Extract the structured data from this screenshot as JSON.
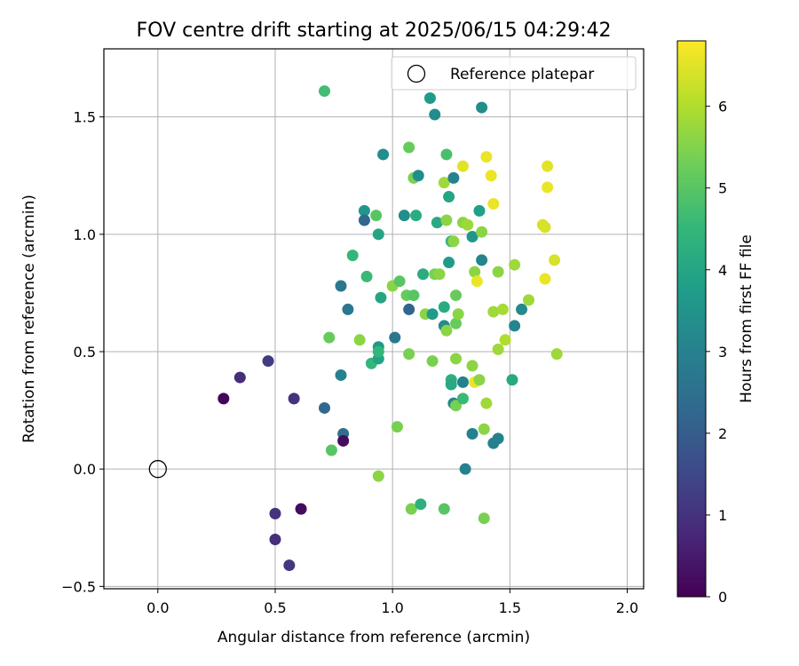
{
  "chart_data": {
    "type": "scatter",
    "title": "FOV centre drift starting at 2025/06/15 04:29:42",
    "xlabel": "Angular distance from reference (arcmin)",
    "ylabel": "Rotation from reference (arcmin)",
    "xlim": [
      -0.23,
      2.07
    ],
    "ylim": [
      -0.51,
      1.79
    ],
    "xticks": [
      "0.0",
      "0.5",
      "1.0",
      "1.5",
      "2.0"
    ],
    "xtick_values": [
      0.0,
      0.5,
      1.0,
      1.5,
      2.0
    ],
    "yticks": [
      "−0.5",
      "0.0",
      "0.5",
      "1.0",
      "1.5"
    ],
    "ytick_values": [
      -0.5,
      0.0,
      0.5,
      1.0,
      1.5
    ],
    "grid": true,
    "legend": {
      "location": "upper right",
      "entries": [
        "Reference platepar"
      ]
    },
    "reference_point": {
      "x": 0.0,
      "y": 0.0
    },
    "colorbar": {
      "label": "Hours from first FF file",
      "range": [
        0,
        6.8
      ],
      "ticks": [
        "0",
        "1",
        "2",
        "3",
        "4",
        "5",
        "6"
      ],
      "tick_values": [
        0,
        1,
        2,
        3,
        4,
        5,
        6
      ],
      "colormap": [
        "#440154",
        "#482878",
        "#3e4989",
        "#31688e",
        "#26828e",
        "#1f9e89",
        "#35b779",
        "#6ece58",
        "#b5de2b",
        "#fde725"
      ]
    },
    "points": [
      {
        "x": 0.28,
        "y": 0.3,
        "h": 0.1
      },
      {
        "x": 0.35,
        "y": 0.39,
        "h": 0.9
      },
      {
        "x": 0.47,
        "y": 0.46,
        "h": 1.2
      },
      {
        "x": 0.58,
        "y": 0.3,
        "h": 1.0
      },
      {
        "x": 0.5,
        "y": -0.19,
        "h": 1.0
      },
      {
        "x": 0.5,
        "y": -0.3,
        "h": 0.9
      },
      {
        "x": 0.56,
        "y": -0.41,
        "h": 1.1
      },
      {
        "x": 0.61,
        "y": -0.17,
        "h": 0.2
      },
      {
        "x": 0.71,
        "y": 0.26,
        "h": 2.3
      },
      {
        "x": 0.71,
        "y": 1.61,
        "h": 4.7
      },
      {
        "x": 0.73,
        "y": 0.56,
        "h": 5.2
      },
      {
        "x": 0.74,
        "y": 0.08,
        "h": 5.0
      },
      {
        "x": 0.78,
        "y": 0.78,
        "h": 2.7
      },
      {
        "x": 0.78,
        "y": 0.4,
        "h": 3.0
      },
      {
        "x": 0.79,
        "y": 0.15,
        "h": 2.5
      },
      {
        "x": 0.79,
        "y": 0.12,
        "h": 0.2
      },
      {
        "x": 0.81,
        "y": 0.68,
        "h": 2.7
      },
      {
        "x": 0.83,
        "y": 0.91,
        "h": 4.5
      },
      {
        "x": 0.86,
        "y": 0.55,
        "h": 5.6
      },
      {
        "x": 0.88,
        "y": 1.1,
        "h": 3.6
      },
      {
        "x": 0.88,
        "y": 1.06,
        "h": 2.3
      },
      {
        "x": 0.89,
        "y": 0.82,
        "h": 4.6
      },
      {
        "x": 0.91,
        "y": 0.45,
        "h": 4.5
      },
      {
        "x": 0.93,
        "y": 1.08,
        "h": 5.0
      },
      {
        "x": 0.94,
        "y": 0.47,
        "h": 3.9
      },
      {
        "x": 0.94,
        "y": 0.52,
        "h": 3.6
      },
      {
        "x": 0.94,
        "y": 0.5,
        "h": 4.5
      },
      {
        "x": 0.94,
        "y": 1.0,
        "h": 4.0
      },
      {
        "x": 0.95,
        "y": 0.73,
        "h": 4.0
      },
      {
        "x": 0.94,
        "y": -0.03,
        "h": 5.6
      },
      {
        "x": 0.96,
        "y": 1.34,
        "h": 3.3
      },
      {
        "x": 1.0,
        "y": 0.78,
        "h": 5.6
      },
      {
        "x": 1.01,
        "y": 0.56,
        "h": 2.7
      },
      {
        "x": 1.02,
        "y": 0.18,
        "h": 5.4
      },
      {
        "x": 1.03,
        "y": 0.8,
        "h": 5.0
      },
      {
        "x": 1.05,
        "y": 1.08,
        "h": 3.3
      },
      {
        "x": 1.07,
        "y": 1.37,
        "h": 5.2
      },
      {
        "x": 1.06,
        "y": 0.74,
        "h": 5.2
      },
      {
        "x": 1.07,
        "y": 0.68,
        "h": 2.2
      },
      {
        "x": 1.07,
        "y": 0.49,
        "h": 5.4
      },
      {
        "x": 1.08,
        "y": -0.17,
        "h": 5.4
      },
      {
        "x": 1.09,
        "y": 1.24,
        "h": 5.4
      },
      {
        "x": 1.09,
        "y": 0.74,
        "h": 5.0
      },
      {
        "x": 1.1,
        "y": 1.08,
        "h": 4.2
      },
      {
        "x": 1.11,
        "y": 1.25,
        "h": 3.3
      },
      {
        "x": 1.12,
        "y": -0.15,
        "h": 4.3
      },
      {
        "x": 1.13,
        "y": 0.83,
        "h": 4.2
      },
      {
        "x": 1.14,
        "y": 0.66,
        "h": 5.6
      },
      {
        "x": 1.16,
        "y": 1.58,
        "h": 3.7
      },
      {
        "x": 1.17,
        "y": 0.66,
        "h": 3.7
      },
      {
        "x": 1.17,
        "y": 0.46,
        "h": 5.4
      },
      {
        "x": 1.18,
        "y": 1.51,
        "h": 3.3
      },
      {
        "x": 1.18,
        "y": 0.83,
        "h": 5.4
      },
      {
        "x": 1.19,
        "y": 1.05,
        "h": 4.1
      },
      {
        "x": 1.2,
        "y": 0.83,
        "h": 5.6
      },
      {
        "x": 1.22,
        "y": 1.22,
        "h": 5.8
      },
      {
        "x": 1.22,
        "y": 0.69,
        "h": 4.2
      },
      {
        "x": 1.22,
        "y": 0.61,
        "h": 3.3
      },
      {
        "x": 1.23,
        "y": 0.59,
        "h": 5.6
      },
      {
        "x": 1.23,
        "y": 1.34,
        "h": 4.8
      },
      {
        "x": 1.23,
        "y": 1.06,
        "h": 5.6
      },
      {
        "x": 1.24,
        "y": 1.16,
        "h": 4.0
      },
      {
        "x": 1.24,
        "y": 0.88,
        "h": 3.7
      },
      {
        "x": 1.22,
        "y": -0.17,
        "h": 5.0
      },
      {
        "x": 1.25,
        "y": 0.97,
        "h": 4.5
      },
      {
        "x": 1.26,
        "y": 1.24,
        "h": 3.0
      },
      {
        "x": 1.26,
        "y": 0.97,
        "h": 5.6
      },
      {
        "x": 1.25,
        "y": 0.38,
        "h": 4.3
      },
      {
        "x": 1.25,
        "y": 0.36,
        "h": 4.1
      },
      {
        "x": 1.26,
        "y": 0.28,
        "h": 3.1
      },
      {
        "x": 1.27,
        "y": 0.74,
        "h": 5.2
      },
      {
        "x": 1.27,
        "y": 0.62,
        "h": 5.2
      },
      {
        "x": 1.27,
        "y": 0.47,
        "h": 5.6
      },
      {
        "x": 1.27,
        "y": 0.27,
        "h": 5.4
      },
      {
        "x": 1.28,
        "y": 0.66,
        "h": 5.6
      },
      {
        "x": 1.3,
        "y": 1.29,
        "h": 6.5
      },
      {
        "x": 1.3,
        "y": 1.05,
        "h": 5.6
      },
      {
        "x": 1.3,
        "y": 0.37,
        "h": 3.0
      },
      {
        "x": 1.3,
        "y": 0.3,
        "h": 4.6
      },
      {
        "x": 1.31,
        "y": 0.0,
        "h": 3.0
      },
      {
        "x": 1.32,
        "y": 1.04,
        "h": 5.8
      },
      {
        "x": 1.34,
        "y": 0.99,
        "h": 3.6
      },
      {
        "x": 1.34,
        "y": 0.44,
        "h": 5.6
      },
      {
        "x": 1.34,
        "y": 0.15,
        "h": 3.0
      },
      {
        "x": 1.35,
        "y": 0.84,
        "h": 5.6
      },
      {
        "x": 1.35,
        "y": 0.37,
        "h": 6.6
      },
      {
        "x": 1.36,
        "y": 0.8,
        "h": 6.6
      },
      {
        "x": 1.37,
        "y": 1.1,
        "h": 3.8
      },
      {
        "x": 1.37,
        "y": 0.38,
        "h": 5.6
      },
      {
        "x": 1.38,
        "y": 1.54,
        "h": 3.3
      },
      {
        "x": 1.38,
        "y": 1.01,
        "h": 5.6
      },
      {
        "x": 1.38,
        "y": 0.89,
        "h": 3.1
      },
      {
        "x": 1.39,
        "y": 0.17,
        "h": 5.6
      },
      {
        "x": 1.39,
        "y": -0.21,
        "h": 5.4
      },
      {
        "x": 1.4,
        "y": 1.33,
        "h": 6.6
      },
      {
        "x": 1.4,
        "y": 0.28,
        "h": 5.8
      },
      {
        "x": 1.42,
        "y": 1.25,
        "h": 6.6
      },
      {
        "x": 1.43,
        "y": 1.13,
        "h": 6.6
      },
      {
        "x": 1.43,
        "y": 0.11,
        "h": 3.0
      },
      {
        "x": 1.43,
        "y": 0.67,
        "h": 5.8
      },
      {
        "x": 1.45,
        "y": 0.84,
        "h": 5.6
      },
      {
        "x": 1.45,
        "y": 0.51,
        "h": 5.8
      },
      {
        "x": 1.45,
        "y": 0.13,
        "h": 3.0
      },
      {
        "x": 1.47,
        "y": 0.68,
        "h": 5.9
      },
      {
        "x": 1.48,
        "y": 0.55,
        "h": 6.0
      },
      {
        "x": 1.51,
        "y": 0.38,
        "h": 4.1
      },
      {
        "x": 1.52,
        "y": 0.87,
        "h": 5.8
      },
      {
        "x": 1.52,
        "y": 0.61,
        "h": 3.1
      },
      {
        "x": 1.55,
        "y": 0.68,
        "h": 3.2
      },
      {
        "x": 1.58,
        "y": 0.72,
        "h": 5.8
      },
      {
        "x": 1.64,
        "y": 1.04,
        "h": 6.4
      },
      {
        "x": 1.65,
        "y": 1.03,
        "h": 6.4
      },
      {
        "x": 1.65,
        "y": 0.81,
        "h": 6.6
      },
      {
        "x": 1.66,
        "y": 1.2,
        "h": 6.6
      },
      {
        "x": 1.66,
        "y": 1.29,
        "h": 6.5
      },
      {
        "x": 1.69,
        "y": 0.89,
        "h": 6.4
      },
      {
        "x": 1.7,
        "y": 0.49,
        "h": 5.8
      }
    ]
  }
}
